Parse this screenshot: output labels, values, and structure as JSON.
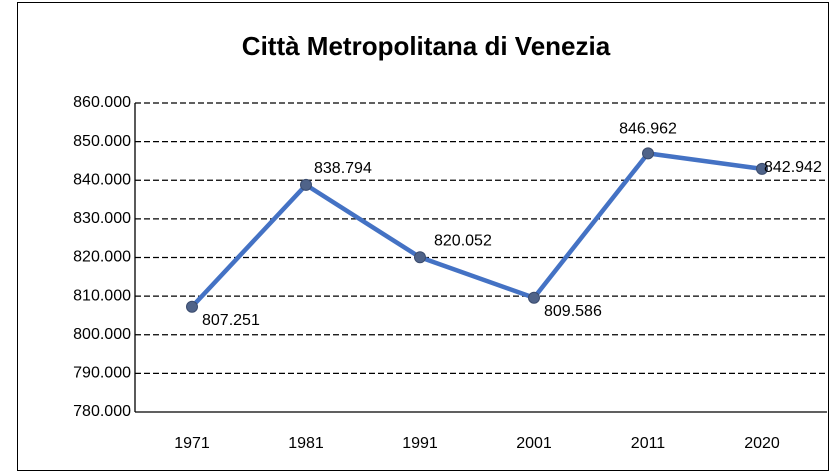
{
  "chart_data": {
    "type": "line",
    "title": "Città Metropolitana di Venezia",
    "categories": [
      "1971",
      "1981",
      "1991",
      "2001",
      "2011",
      "2020"
    ],
    "series": [
      {
        "name": "Città Metropolitana di Venezia",
        "color": "#4472c4",
        "values": [
          807251,
          838794,
          820052,
          809586,
          846962,
          842942
        ],
        "value_labels": [
          "807.251",
          "838.794",
          "820.052",
          "809.586",
          "846.962",
          "842.942"
        ]
      }
    ],
    "ylim": [
      780000,
      860000
    ],
    "yticks": [
      {
        "value": 780000,
        "label": "780.000"
      },
      {
        "value": 790000,
        "label": "790.000"
      },
      {
        "value": 800000,
        "label": "800.000"
      },
      {
        "value": 810000,
        "label": "810.000"
      },
      {
        "value": 820000,
        "label": "820.000"
      },
      {
        "value": 830000,
        "label": "830.000"
      },
      {
        "value": 840000,
        "label": "840.000"
      },
      {
        "value": 850000,
        "label": "850.000"
      },
      {
        "value": 860000,
        "label": "860.000"
      }
    ],
    "grid": true
  }
}
